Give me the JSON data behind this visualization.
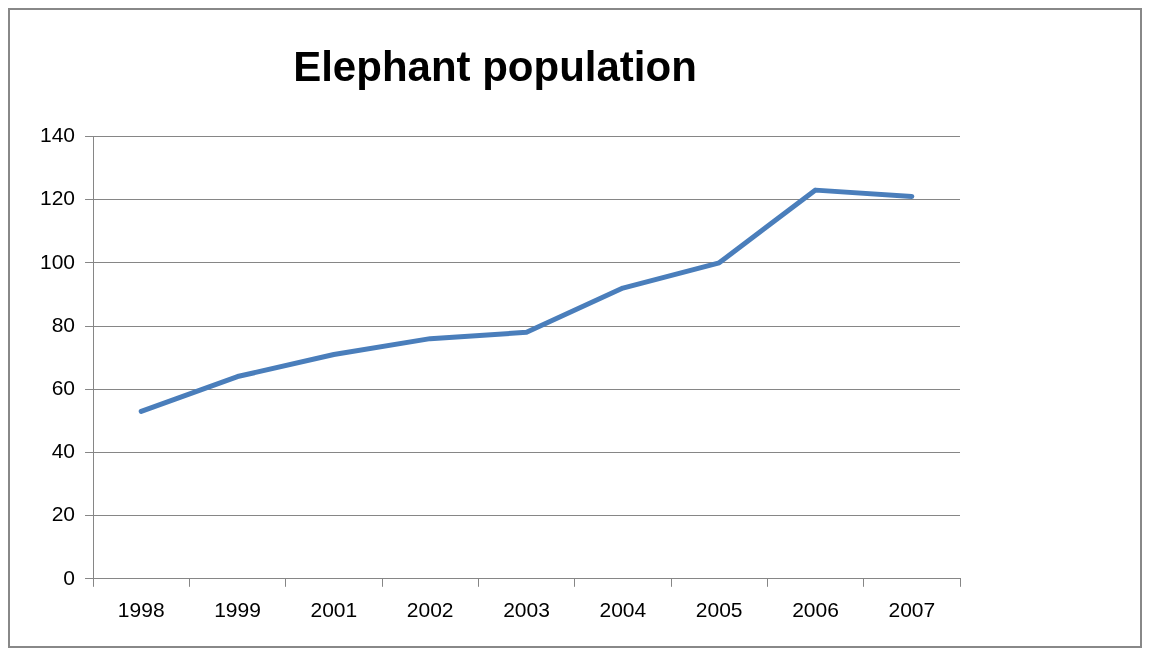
{
  "chart_data": {
    "type": "line",
    "title": "Elephant population",
    "categories": [
      "1998",
      "1999",
      "2001",
      "2002",
      "2003",
      "2004",
      "2005",
      "2006",
      "2007"
    ],
    "series": [
      {
        "color": "#4a7ebb",
        "values": [
          53,
          64,
          71,
          76,
          78,
          92,
          100,
          123,
          121
        ]
      }
    ],
    "ylim": [
      0,
      140
    ],
    "yticks": [
      0,
      20,
      40,
      60,
      80,
      100,
      120,
      140
    ],
    "grid": "y",
    "legend": false,
    "marker": "none",
    "line_style": "solid"
  }
}
